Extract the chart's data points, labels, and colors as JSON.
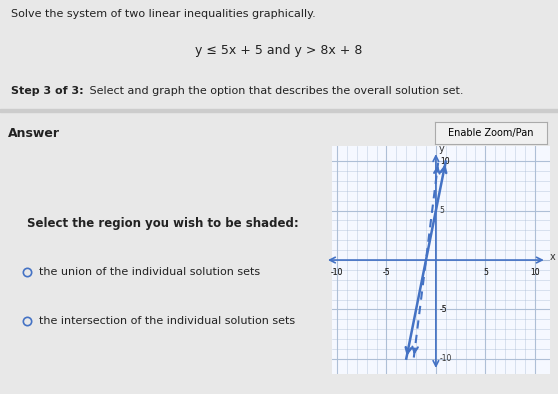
{
  "title_text": "Solve the system of two linear inequalities graphically.",
  "equation_text": "y ≤ 5x + 5 and y > 8x + 8",
  "step_text_bold": "Step 3 of 3:",
  "step_text_rest": " Select and graph the option that describes the overall solution set.",
  "answer_label": "Answer",
  "select_text": "Select the region you wish to be shaded:",
  "radio_option1": "the union of the individual solution sets",
  "radio_option2": "the intersection of the individual solution sets",
  "enable_zoom_text": "Enable Zoom/Pan",
  "xlim": [
    -10,
    10
  ],
  "ylim": [
    -10,
    10
  ],
  "line1_slope": 5,
  "line1_intercept": 5,
  "line1_color": "#4472c4",
  "line2_slope": 8,
  "line2_intercept": 8,
  "line2_color": "#4472c4",
  "bg_color": "#e8e8e8",
  "graph_bg": "#f5f8ff",
  "grid_color": "#aabcd4",
  "axis_color": "#4472c4",
  "figsize": [
    5.58,
    3.94
  ],
  "dpi": 100
}
